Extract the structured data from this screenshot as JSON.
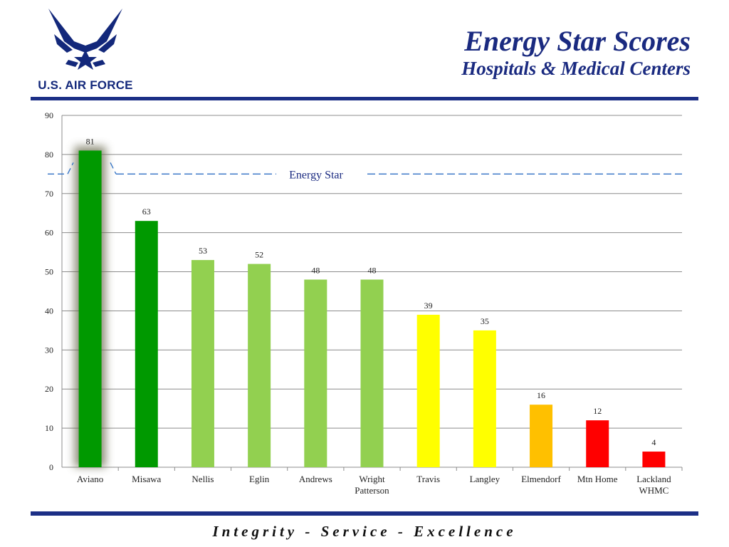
{
  "header": {
    "logo_text": "U.S. AIR FORCE",
    "title": "Energy Star Scores",
    "subtitle": "Hospitals & Medical Centers"
  },
  "footer": {
    "motto": "Integrity - Service - Excellence"
  },
  "colors": {
    "brand_blue": "#1c2f86",
    "dark_green": "#009900",
    "light_green": "#92d050",
    "yellow": "#ffff00",
    "orange": "#ffc000",
    "red": "#ff0000",
    "reference_line": "#2e6fc4"
  },
  "chart_data": {
    "type": "bar",
    "categories": [
      "Aviano",
      "Misawa",
      "Nellis",
      "Eglin",
      "Andrews",
      "Wright Patterson",
      "Travis",
      "Langley",
      "Elmendorf",
      "Mtn Home",
      "Lackland WHMC"
    ],
    "values": [
      81,
      63,
      53,
      52,
      48,
      48,
      39,
      35,
      16,
      12,
      4
    ],
    "bar_colors": [
      "#009900",
      "#009900",
      "#92d050",
      "#92d050",
      "#92d050",
      "#92d050",
      "#ffff00",
      "#ffff00",
      "#ffc000",
      "#ff0000",
      "#ff0000"
    ],
    "highlighted": "Aviano",
    "ylim": [
      0,
      90
    ],
    "yticks": [
      0,
      10,
      20,
      30,
      40,
      50,
      60,
      70,
      80,
      90
    ],
    "reference_line": {
      "value": 75,
      "label": "Energy Star",
      "style": "dashed"
    },
    "data_labels": true,
    "grid": true,
    "legend": "none"
  }
}
